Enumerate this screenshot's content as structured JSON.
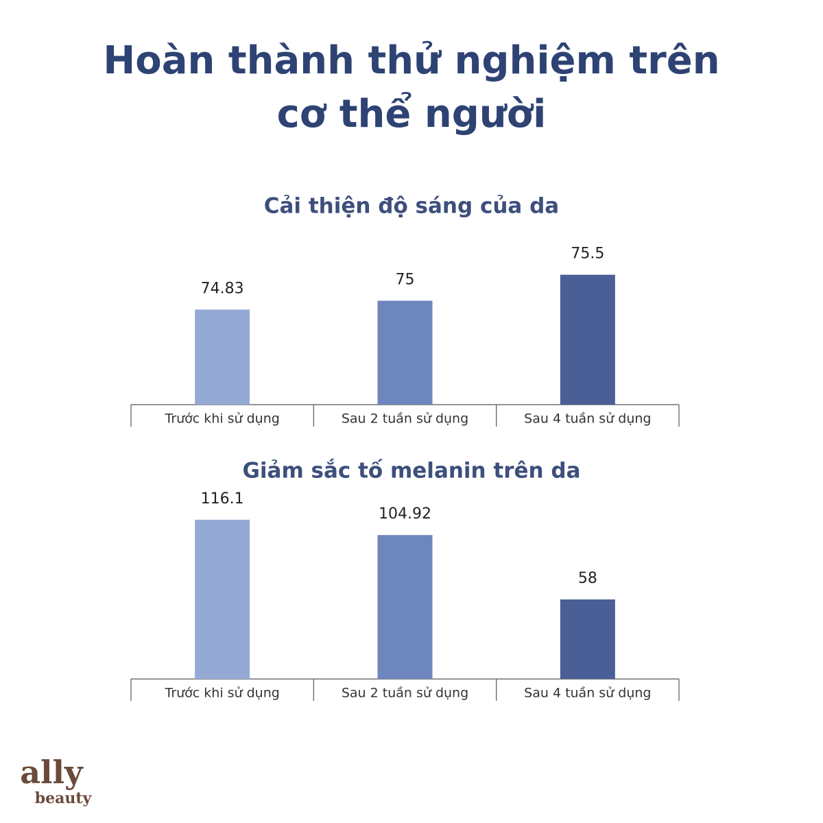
{
  "title": [
    "Hoàn thành thử nghiệm trên",
    "cơ thể người"
  ],
  "chart_data": [
    {
      "type": "bar",
      "title": "Cải thiện độ sáng của da",
      "categories": [
        "Trước khi sử dụng",
        "Sau 2 tuần sử dụng",
        "Sau 4 tuần sử dụng"
      ],
      "values": [
        74.83,
        75,
        75.5
      ],
      "colors": [
        "#94aad4",
        "#6d86bd",
        "#4a5f96"
      ],
      "ylim": [
        73,
        76.3
      ]
    },
    {
      "type": "bar",
      "title": "Giảm sắc tố melanin trên da",
      "categories": [
        "Trước khi sử dụng",
        "Sau 2 tuần sử dụng",
        "Sau 4 tuần sử dụng"
      ],
      "values": [
        116.1,
        104.92,
        58
      ],
      "colors": [
        "#94aad4",
        "#6d86bd",
        "#4a5f96"
      ],
      "ylim": [
        0,
        125
      ]
    }
  ],
  "logo": {
    "name": "ally",
    "sub": "beauty"
  }
}
